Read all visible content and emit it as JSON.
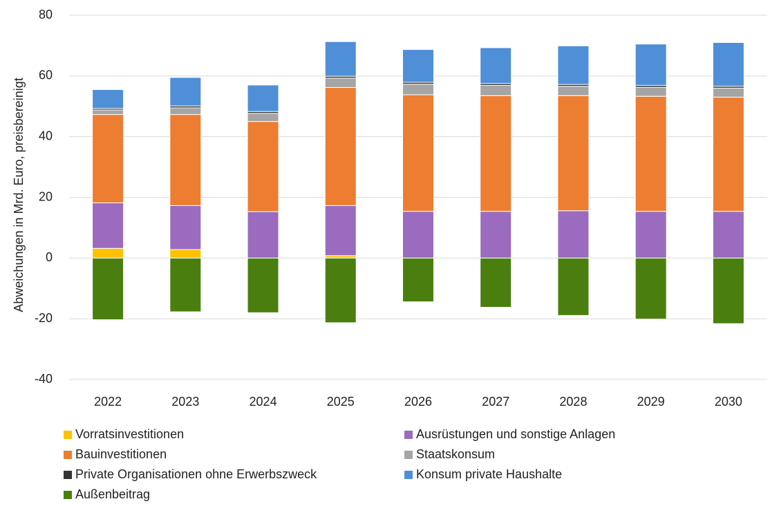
{
  "chart_data": {
    "type": "stacked_bar",
    "y_axis_label": "Abweichungen in Mrd. Euro, preisbereinigt",
    "categories": [
      "2022",
      "2023",
      "2024",
      "2025",
      "2026",
      "2027",
      "2028",
      "2029",
      "2030"
    ],
    "series": [
      {
        "name": "Vorratsinvestitionen",
        "color": "#ffc000",
        "values": [
          3.2,
          2.8,
          0,
          0.8,
          0,
          0,
          0,
          0,
          0
        ]
      },
      {
        "name": "Ausrüstungen und sonstige Anlagen",
        "color": "#9a6bbf",
        "values": [
          15,
          14.5,
          15.3,
          16.5,
          15.4,
          15.4,
          15.6,
          15.4,
          15.4
        ]
      },
      {
        "name": "Bauinvestitionen",
        "color": "#ed7d31",
        "values": [
          29.1,
          30,
          29.7,
          38.9,
          38.4,
          38.1,
          37.9,
          37.9,
          37.6
        ]
      },
      {
        "name": "Staatskonsum",
        "color": "#a5a5a5",
        "values": [
          1.5,
          2.2,
          2.7,
          3.1,
          3.5,
          3.4,
          3.1,
          3,
          3
        ]
      },
      {
        "name": "Private Organisationen ohne Erwerbszweck",
        "color": "#333333",
        "values": [
          0.5,
          0.6,
          0.6,
          0.6,
          0.6,
          0.6,
          0.6,
          0.6,
          0.6
        ]
      },
      {
        "name": "Konsum private Haushalte",
        "color": "#4f8fd8",
        "values": [
          6.2,
          9.4,
          8.7,
          11.4,
          10.8,
          11.8,
          12.7,
          13.6,
          14.4
        ]
      },
      {
        "name": "Außenbeitrag",
        "color": "#4a7f0f",
        "values": [
          -20.3,
          -17.7,
          -18,
          -21.3,
          -14.4,
          -16.2,
          -18.9,
          -20.1,
          -21.6
        ]
      }
    ],
    "ylim": [
      -40,
      80
    ],
    "yticks": [
      -40,
      -20,
      0,
      20,
      40,
      60,
      80
    ],
    "grid": true,
    "legend": "bottom"
  }
}
